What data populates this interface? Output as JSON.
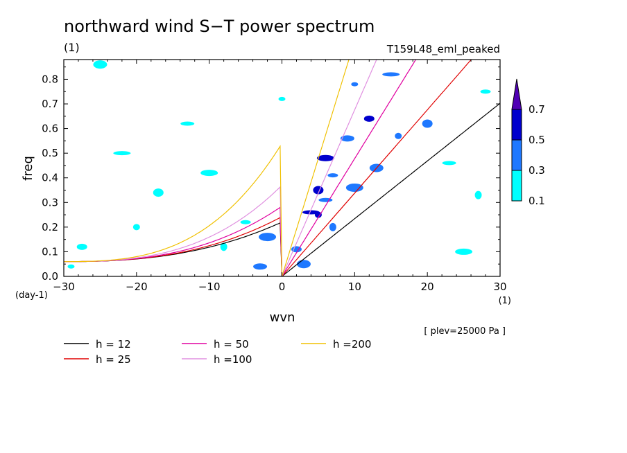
{
  "chart_data": {
    "type": "heatmap",
    "title": "northward wind S−T power spectrum",
    "units_label": "(1)",
    "experiment": "T159L48_eml_peaked",
    "xlabel": "wvn",
    "ylabel": "freq",
    "x_unit": "(1)",
    "y_unit": "(day-1)",
    "level_note": "[ plev=25000 Pa ]",
    "xlim": [
      -30,
      30
    ],
    "ylim": [
      0.0,
      0.88
    ],
    "x_ticks": [
      "−30",
      "−20",
      "−10",
      "0",
      "10",
      "20",
      "30"
    ],
    "y_ticks": [
      "0.0",
      "0.1",
      "0.2",
      "0.3",
      "0.4",
      "0.5",
      "0.6",
      "0.7",
      "0.8"
    ],
    "colorbar": {
      "levels": [
        "0.1",
        "0.3",
        "0.5",
        "0.7"
      ],
      "colors": [
        "#00ffff",
        "#1e78ff",
        "#0000cd",
        "#5000b4"
      ],
      "extend": "max"
    },
    "series": [
      {
        "name": "h = 12",
        "color": "#000000",
        "equivalent_depth_m": 12
      },
      {
        "name": "h = 25",
        "color": "#e00000",
        "equivalent_depth_m": 25
      },
      {
        "name": "h = 50",
        "color": "#e000a0",
        "equivalent_depth_m": 50
      },
      {
        "name": "h =100",
        "color": "#e090e0",
        "equivalent_depth_m": 100
      },
      {
        "name": "h =200",
        "color": "#f0c000",
        "equivalent_depth_m": 200
      }
    ],
    "patches": [
      {
        "x": -29,
        "y": 0.04,
        "v": 0.1
      },
      {
        "x": -27.5,
        "y": 0.12,
        "v": 0.1
      },
      {
        "x": -25,
        "y": 0.86,
        "v": 0.1
      },
      {
        "x": -22,
        "y": 0.5,
        "v": 0.1
      },
      {
        "x": -20,
        "y": 0.2,
        "v": 0.15
      },
      {
        "x": -17,
        "y": 0.34,
        "v": 0.1
      },
      {
        "x": -13,
        "y": 0.62,
        "v": 0.1
      },
      {
        "x": -10,
        "y": 0.42,
        "v": 0.1
      },
      {
        "x": -8,
        "y": 0.12,
        "v": 0.1
      },
      {
        "x": -5,
        "y": 0.22,
        "v": 0.1
      },
      {
        "x": -3,
        "y": 0.04,
        "v": 0.35
      },
      {
        "x": -2,
        "y": 0.16,
        "v": 0.3
      },
      {
        "x": 0,
        "y": 0.72,
        "v": 0.1
      },
      {
        "x": 2,
        "y": 0.11,
        "v": 0.4
      },
      {
        "x": 3,
        "y": 0.05,
        "v": 0.35
      },
      {
        "x": 4,
        "y": 0.26,
        "v": 0.55
      },
      {
        "x": 5,
        "y": 0.25,
        "v": 0.6
      },
      {
        "x": 5,
        "y": 0.35,
        "v": 0.5
      },
      {
        "x": 6,
        "y": 0.31,
        "v": 0.45
      },
      {
        "x": 6,
        "y": 0.48,
        "v": 0.55
      },
      {
        "x": 7,
        "y": 0.2,
        "v": 0.45
      },
      {
        "x": 7,
        "y": 0.41,
        "v": 0.4
      },
      {
        "x": 9,
        "y": 0.56,
        "v": 0.4
      },
      {
        "x": 10,
        "y": 0.36,
        "v": 0.4
      },
      {
        "x": 10,
        "y": 0.78,
        "v": 0.4
      },
      {
        "x": 12,
        "y": 0.64,
        "v": 0.5
      },
      {
        "x": 13,
        "y": 0.44,
        "v": 0.4
      },
      {
        "x": 15,
        "y": 0.82,
        "v": 0.45
      },
      {
        "x": 16,
        "y": 0.57,
        "v": 0.3
      },
      {
        "x": 20,
        "y": 0.62,
        "v": 0.3
      },
      {
        "x": 23,
        "y": 0.46,
        "v": 0.2
      },
      {
        "x": 25,
        "y": 0.1,
        "v": 0.1
      },
      {
        "x": 27,
        "y": 0.33,
        "v": 0.1
      },
      {
        "x": 28,
        "y": 0.75,
        "v": 0.1
      }
    ]
  }
}
